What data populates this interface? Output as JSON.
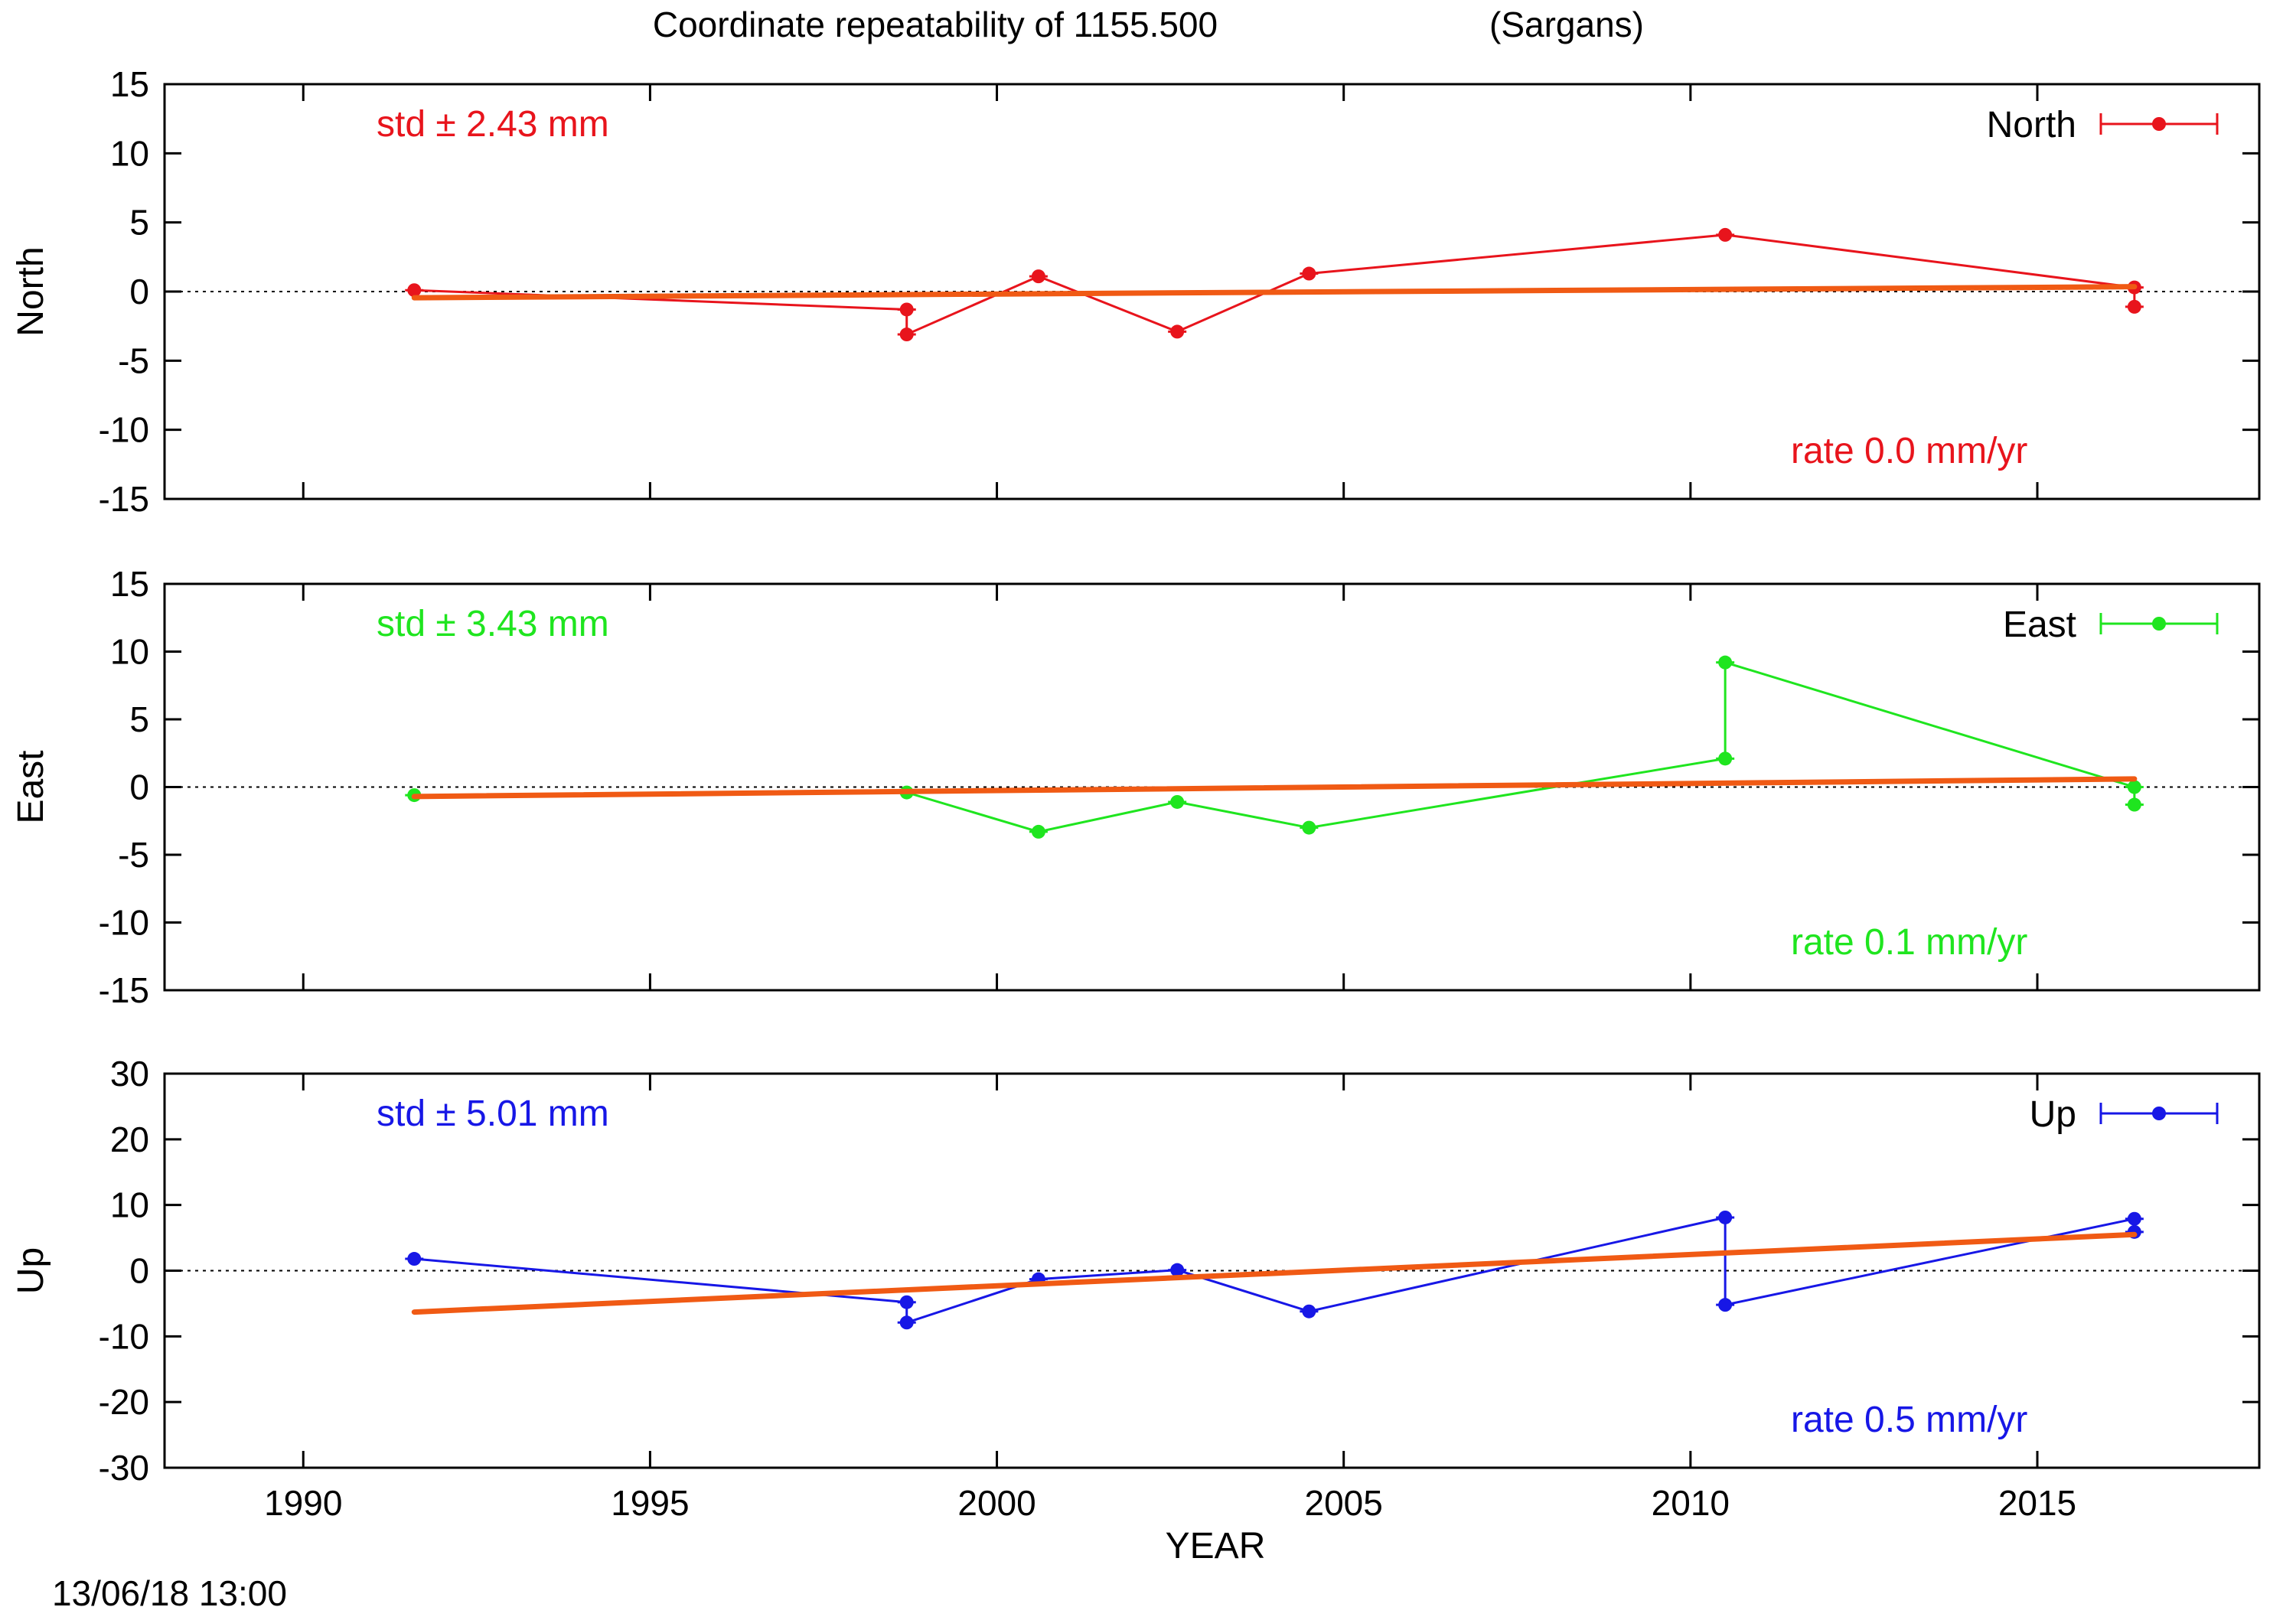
{
  "title_left": "Coordinate repeatability of 1155.500",
  "title_right": "(Sargans)",
  "xlabel": "YEAR",
  "timestamp": "13/06/18 13:00",
  "chart_data": [
    {
      "type": "line",
      "component": "North",
      "legend": "North",
      "ylabel": "North",
      "color": "#e8141c",
      "trend_color": "#f05a14",
      "xlim": [
        1988,
        2018.2
      ],
      "ylim": [
        -15,
        15
      ],
      "yticks": [
        -15,
        -10,
        -5,
        0,
        5,
        10,
        15
      ],
      "xticks": [
        1990,
        1995,
        2000,
        2005,
        2010,
        2015
      ],
      "std_label": "std ± 2.43 mm",
      "rate_label": "rate  0.0 mm/yr",
      "series": [
        {
          "x": [
            1991.6,
            1998.7,
            1998.7,
            2000.6,
            2002.6,
            2004.5,
            2010.5,
            2016.4,
            2016.4
          ],
          "y": [
            0.1,
            -1.3,
            -3.1,
            1.1,
            -2.9,
            1.3,
            4.1,
            0.3,
            -1.1
          ]
        }
      ],
      "trend": {
        "x": [
          1991.6,
          2016.4
        ],
        "y": [
          -0.45,
          0.35
        ]
      }
    },
    {
      "type": "line",
      "component": "East",
      "legend": "East",
      "ylabel": "East",
      "color": "#1fe51f",
      "trend_color": "#f05a14",
      "xlim": [
        1988,
        2018.2
      ],
      "ylim": [
        -15,
        15
      ],
      "yticks": [
        -15,
        -10,
        -5,
        0,
        5,
        10,
        15
      ],
      "xticks": [
        1990,
        1995,
        2000,
        2005,
        2010,
        2015
      ],
      "std_label": "std ± 3.43 mm",
      "rate_label": "rate  0.1 mm/yr",
      "series": [
        {
          "x": [
            1991.6,
            1998.7,
            2000.6,
            2002.6,
            2004.5,
            2010.5,
            2010.5,
            2016.4,
            2016.4
          ],
          "y": [
            -0.6,
            -0.4,
            -3.3,
            -1.1,
            -3.0,
            2.1,
            9.2,
            0.0,
            -1.3
          ]
        }
      ],
      "trend": {
        "x": [
          1991.6,
          2016.4
        ],
        "y": [
          -0.7,
          0.6
        ]
      }
    },
    {
      "type": "line",
      "component": "Up",
      "legend": "Up",
      "ylabel": "Up",
      "color": "#1717e6",
      "trend_color": "#f05a14",
      "xlim": [
        1988,
        2018.2
      ],
      "ylim": [
        -30,
        30
      ],
      "yticks": [
        -30,
        -20,
        -10,
        0,
        10,
        20,
        30
      ],
      "xticks": [
        1990,
        1995,
        2000,
        2005,
        2010,
        2015
      ],
      "std_label": "std ± 5.01 mm",
      "rate_label": "rate  0.5 mm/yr",
      "series": [
        {
          "x": [
            1991.6,
            1998.7,
            1998.7,
            2000.6,
            2002.6,
            2004.5,
            2010.5,
            2010.5,
            2016.4,
            2016.4
          ],
          "y": [
            1.8,
            -4.8,
            -7.9,
            -1.3,
            0.1,
            -6.2,
            8.1,
            -5.2,
            7.9,
            5.9
          ]
        }
      ],
      "trend": {
        "x": [
          1991.6,
          2016.4
        ],
        "y": [
          -6.3,
          5.5
        ]
      }
    }
  ]
}
